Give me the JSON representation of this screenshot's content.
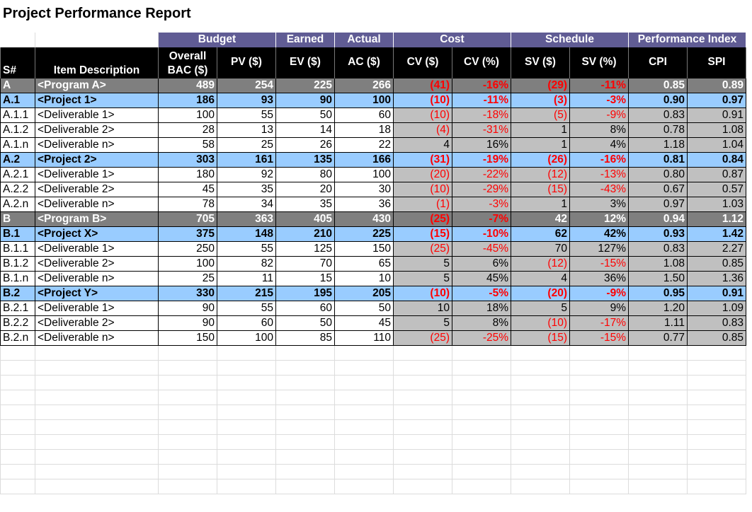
{
  "title": "Project Performance Report",
  "group_headers": [
    "Budget",
    "Earned",
    "Actual",
    "Cost",
    "Schedule",
    "Performance Index"
  ],
  "column_headers": [
    "S#",
    "Item Description",
    "Overall BAC ($)",
    "PV ($)",
    "EV ($)",
    "AC ($)",
    "CV ($)",
    "CV (%)",
    "SV ($)",
    "SV (%)",
    "CPI",
    "SPI"
  ],
  "colors": {
    "group_header_bg": "#605c94",
    "header_bg": "#000000",
    "program_row_bg": "#7f7f7f",
    "project_row_bg": "#99ccff",
    "variance_cell_bg": "#c0c0c0",
    "negative_text": "#ff0000"
  },
  "rows": [
    {
      "level": "program",
      "id": "A",
      "desc": "<Program A>",
      "bac": "489",
      "pv": "254",
      "ev": "225",
      "ac": "266",
      "cv": "(41)",
      "cvp": "-16%",
      "sv": "(29)",
      "svp": "-11%",
      "cpi": "0.85",
      "spi": "0.89"
    },
    {
      "level": "project",
      "id": "A.1",
      "desc": "<Project 1>",
      "bac": "186",
      "pv": "93",
      "ev": "90",
      "ac": "100",
      "cv": "(10)",
      "cvp": "-11%",
      "sv": "(3)",
      "svp": "-3%",
      "cpi": "0.90",
      "spi": "0.97"
    },
    {
      "level": "deliv",
      "id": "A.1.1",
      "desc": "<Deliverable 1>",
      "bac": "100",
      "pv": "55",
      "ev": "50",
      "ac": "60",
      "cv": "(10)",
      "cvp": "-18%",
      "sv": "(5)",
      "svp": "-9%",
      "cpi": "0.83",
      "spi": "0.91"
    },
    {
      "level": "deliv",
      "id": "A.1.2",
      "desc": "<Deliverable 2>",
      "bac": "28",
      "pv": "13",
      "ev": "14",
      "ac": "18",
      "cv": "(4)",
      "cvp": "-31%",
      "sv": "1",
      "svp": "8%",
      "cpi": "0.78",
      "spi": "1.08"
    },
    {
      "level": "deliv",
      "id": "A.1.n",
      "desc": "<Deliverable n>",
      "bac": "58",
      "pv": "25",
      "ev": "26",
      "ac": "22",
      "cv": "4",
      "cvp": "16%",
      "sv": "1",
      "svp": "4%",
      "cpi": "1.18",
      "spi": "1.04"
    },
    {
      "level": "project",
      "id": "A.2",
      "desc": "<Project 2>",
      "bac": "303",
      "pv": "161",
      "ev": "135",
      "ac": "166",
      "cv": "(31)",
      "cvp": "-19%",
      "sv": "(26)",
      "svp": "-16%",
      "cpi": "0.81",
      "spi": "0.84"
    },
    {
      "level": "deliv",
      "id": "A.2.1",
      "desc": "<Deliverable 1>",
      "bac": "180",
      "pv": "92",
      "ev": "80",
      "ac": "100",
      "cv": "(20)",
      "cvp": "-22%",
      "sv": "(12)",
      "svp": "-13%",
      "cpi": "0.80",
      "spi": "0.87"
    },
    {
      "level": "deliv",
      "id": "A.2.2",
      "desc": "<Deliverable 2>",
      "bac": "45",
      "pv": "35",
      "ev": "20",
      "ac": "30",
      "cv": "(10)",
      "cvp": "-29%",
      "sv": "(15)",
      "svp": "-43%",
      "cpi": "0.67",
      "spi": "0.57"
    },
    {
      "level": "deliv",
      "id": "A.2.n",
      "desc": "<Deliverable n>",
      "bac": "78",
      "pv": "34",
      "ev": "35",
      "ac": "36",
      "cv": "(1)",
      "cvp": "-3%",
      "sv": "1",
      "svp": "3%",
      "cpi": "0.97",
      "spi": "1.03"
    },
    {
      "level": "program",
      "id": "B",
      "desc": "<Program B>",
      "bac": "705",
      "pv": "363",
      "ev": "405",
      "ac": "430",
      "cv": "(25)",
      "cvp": "-7%",
      "sv": "42",
      "svp": "12%",
      "cpi": "0.94",
      "spi": "1.12"
    },
    {
      "level": "project",
      "id": "B.1",
      "desc": "<Project X>",
      "bac": "375",
      "pv": "148",
      "ev": "210",
      "ac": "225",
      "cv": "(15)",
      "cvp": "-10%",
      "sv": "62",
      "svp": "42%",
      "cpi": "0.93",
      "spi": "1.42"
    },
    {
      "level": "deliv",
      "id": "B.1.1",
      "desc": "<Deliverable 1>",
      "bac": "250",
      "pv": "55",
      "ev": "125",
      "ac": "150",
      "cv": "(25)",
      "cvp": "-45%",
      "sv": "70",
      "svp": "127%",
      "cpi": "0.83",
      "spi": "2.27"
    },
    {
      "level": "deliv",
      "id": "B.1.2",
      "desc": "<Deliverable 2>",
      "bac": "100",
      "pv": "82",
      "ev": "70",
      "ac": "65",
      "cv": "5",
      "cvp": "6%",
      "sv": "(12)",
      "svp": "-15%",
      "cpi": "1.08",
      "spi": "0.85"
    },
    {
      "level": "deliv",
      "id": "B.1.n",
      "desc": "<Deliverable n>",
      "bac": "25",
      "pv": "11",
      "ev": "15",
      "ac": "10",
      "cv": "5",
      "cvp": "45%",
      "sv": "4",
      "svp": "36%",
      "cpi": "1.50",
      "spi": "1.36"
    },
    {
      "level": "project",
      "id": "B.2",
      "desc": "<Project Y>",
      "bac": "330",
      "pv": "215",
      "ev": "195",
      "ac": "205",
      "cv": "(10)",
      "cvp": "-5%",
      "sv": "(20)",
      "svp": "-9%",
      "cpi": "0.95",
      "spi": "0.91"
    },
    {
      "level": "deliv",
      "id": "B.2.1",
      "desc": "<Deliverable 1>",
      "bac": "90",
      "pv": "55",
      "ev": "60",
      "ac": "50",
      "cv": "10",
      "cvp": "18%",
      "sv": "5",
      "svp": "9%",
      "cpi": "1.20",
      "spi": "1.09"
    },
    {
      "level": "deliv",
      "id": "B.2.2",
      "desc": "<Deliverable 2>",
      "bac": "90",
      "pv": "60",
      "ev": "50",
      "ac": "45",
      "cv": "5",
      "cvp": "8%",
      "sv": "(10)",
      "svp": "-17%",
      "cpi": "1.11",
      "spi": "0.83"
    },
    {
      "level": "deliv",
      "id": "B.2.n",
      "desc": "<Deliverable n>",
      "bac": "150",
      "pv": "100",
      "ev": "85",
      "ac": "110",
      "cv": "(25)",
      "cvp": "-25%",
      "sv": "(15)",
      "svp": "-15%",
      "cpi": "0.77",
      "spi": "0.85"
    }
  ]
}
